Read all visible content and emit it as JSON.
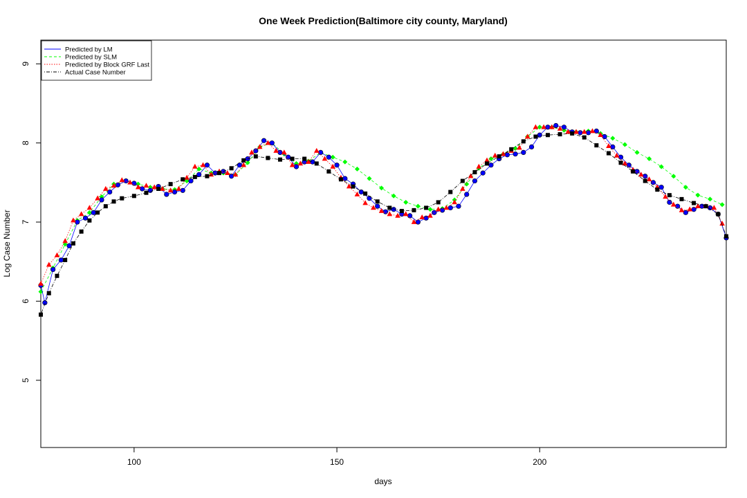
{
  "chart_data": {
    "type": "scatter",
    "title": "One Week Prediction(Baltimore city county, Maryland)",
    "xlabel": "days",
    "ylabel": "Log Case Number",
    "xlim": [
      77,
      246
    ],
    "ylim": [
      4.15,
      9.3
    ],
    "x_ticks": [
      100,
      150,
      200
    ],
    "y_ticks": [
      5,
      6,
      7,
      8,
      9
    ],
    "legend_position": "top-left",
    "legend": [
      {
        "label": "Predicted by LM",
        "color": "#0000ff",
        "line": "solid"
      },
      {
        "label": "Predicted by SLM",
        "color": "#00ff00",
        "line": "dashed"
      },
      {
        "label": "Predicted by Block GRF Last",
        "color": "#ff0000",
        "line": "dotted"
      },
      {
        "label": "Actual Case Number",
        "color": "#000000",
        "line": "dotdash"
      }
    ],
    "series": [
      {
        "name": "Actual Case Number",
        "color": "#000000",
        "marker": "square",
        "x": [
          77,
          79,
          81,
          83,
          85,
          87,
          89,
          91,
          93,
          95,
          97,
          100,
          103,
          106,
          109,
          112,
          115,
          118,
          121,
          124,
          127,
          130,
          133,
          136,
          139,
          142,
          145,
          148,
          151,
          154,
          157,
          160,
          163,
          166,
          169,
          172,
          175,
          178,
          181,
          184,
          187,
          190,
          193,
          196,
          199,
          202,
          205,
          208,
          211,
          214,
          217,
          220,
          223,
          226,
          229,
          232,
          235,
          238,
          241,
          244,
          246
        ],
        "y": [
          5.83,
          6.1,
          6.32,
          6.52,
          6.73,
          6.88,
          7.02,
          7.12,
          7.2,
          7.26,
          7.3,
          7.33,
          7.37,
          7.42,
          7.48,
          7.54,
          7.57,
          7.58,
          7.62,
          7.68,
          7.78,
          7.83,
          7.81,
          7.79,
          7.8,
          7.8,
          7.74,
          7.64,
          7.54,
          7.45,
          7.36,
          7.26,
          7.18,
          7.14,
          7.15,
          7.18,
          7.25,
          7.38,
          7.52,
          7.63,
          7.74,
          7.83,
          7.92,
          8.02,
          8.08,
          8.1,
          8.11,
          8.12,
          8.07,
          7.97,
          7.87,
          7.75,
          7.64,
          7.52,
          7.41,
          7.34,
          7.29,
          7.24,
          7.2,
          7.1,
          6.82
        ]
      },
      {
        "name": "Predicted by SLM",
        "color": "#00ff00",
        "marker": "diamond",
        "x": [
          77,
          80,
          83,
          86,
          89,
          92,
          95,
          98,
          101,
          104,
          107,
          110,
          113,
          116,
          119,
          122,
          125,
          128,
          131,
          134,
          137,
          140,
          143,
          146,
          149,
          152,
          155,
          158,
          161,
          164,
          167,
          170,
          173,
          176,
          179,
          182,
          185,
          188,
          191,
          194,
          197,
          200,
          203,
          206,
          209,
          212,
          215,
          218,
          221,
          224,
          227,
          230,
          233,
          236,
          239,
          242,
          245
        ],
        "y": [
          6.12,
          6.42,
          6.72,
          7.02,
          7.12,
          7.32,
          7.48,
          7.52,
          7.48,
          7.44,
          7.42,
          7.41,
          7.52,
          7.67,
          7.62,
          7.62,
          7.6,
          7.75,
          7.95,
          8.0,
          7.86,
          7.74,
          7.77,
          7.88,
          7.82,
          7.76,
          7.67,
          7.55,
          7.43,
          7.33,
          7.25,
          7.2,
          7.16,
          7.17,
          7.28,
          7.48,
          7.68,
          7.8,
          7.86,
          7.93,
          8.08,
          8.2,
          8.2,
          8.16,
          8.14,
          8.15,
          8.12,
          8.06,
          7.98,
          7.88,
          7.8,
          7.7,
          7.58,
          7.44,
          7.34,
          7.29,
          7.22
        ]
      },
      {
        "name": "Predicted by LM",
        "color": "#0000ff",
        "marker": "circle",
        "x": [
          77,
          78,
          80,
          82,
          84,
          86,
          88,
          90,
          92,
          94,
          96,
          98,
          100,
          102,
          104,
          106,
          108,
          110,
          112,
          114,
          116,
          118,
          120,
          122,
          124,
          126,
          128,
          130,
          132,
          134,
          136,
          138,
          140,
          142,
          144,
          146,
          148,
          150,
          152,
          154,
          156,
          158,
          160,
          162,
          164,
          166,
          168,
          170,
          172,
          174,
          176,
          178,
          180,
          182,
          184,
          186,
          188,
          190,
          192,
          194,
          196,
          198,
          200,
          202,
          204,
          206,
          208,
          210,
          212,
          214,
          216,
          218,
          220,
          222,
          224,
          226,
          228,
          230,
          232,
          234,
          236,
          238,
          240,
          242,
          244,
          246
        ],
        "y": [
          6.2,
          5.98,
          6.4,
          6.52,
          6.7,
          7.0,
          7.05,
          7.12,
          7.28,
          7.38,
          7.47,
          7.52,
          7.49,
          7.42,
          7.4,
          7.45,
          7.35,
          7.38,
          7.4,
          7.52,
          7.6,
          7.72,
          7.62,
          7.64,
          7.58,
          7.72,
          7.8,
          7.9,
          8.03,
          8.0,
          7.88,
          7.82,
          7.7,
          7.76,
          7.76,
          7.88,
          7.82,
          7.72,
          7.55,
          7.48,
          7.38,
          7.3,
          7.2,
          7.13,
          7.16,
          7.1,
          7.08,
          7.0,
          7.05,
          7.12,
          7.15,
          7.18,
          7.2,
          7.35,
          7.52,
          7.62,
          7.72,
          7.8,
          7.85,
          7.86,
          7.88,
          7.95,
          8.1,
          8.2,
          8.22,
          8.2,
          8.14,
          8.13,
          8.13,
          8.15,
          8.08,
          7.95,
          7.82,
          7.72,
          7.64,
          7.58,
          7.5,
          7.44,
          7.25,
          7.2,
          7.12,
          7.16,
          7.2,
          7.18,
          7.1,
          6.8
        ]
      },
      {
        "name": "Predicted by Block GRF Last",
        "color": "#ff0000",
        "marker": "triangle",
        "x": [
          77,
          79,
          81,
          83,
          85,
          87,
          89,
          91,
          93,
          95,
          97,
          99,
          101,
          103,
          105,
          107,
          109,
          111,
          113,
          115,
          117,
          119,
          121,
          123,
          125,
          127,
          129,
          131,
          133,
          135,
          137,
          139,
          141,
          143,
          145,
          147,
          149,
          151,
          153,
          155,
          157,
          159,
          161,
          163,
          165,
          167,
          169,
          171,
          173,
          175,
          177,
          179,
          181,
          183,
          185,
          187,
          189,
          191,
          193,
          195,
          197,
          199,
          201,
          203,
          205,
          207,
          209,
          211,
          213,
          215,
          217,
          219,
          221,
          223,
          225,
          227,
          229,
          231,
          233,
          235,
          237,
          239,
          241,
          243,
          245
        ],
        "y": [
          6.22,
          6.46,
          6.58,
          6.76,
          7.02,
          7.1,
          7.18,
          7.3,
          7.42,
          7.46,
          7.53,
          7.5,
          7.44,
          7.46,
          7.44,
          7.42,
          7.4,
          7.42,
          7.56,
          7.7,
          7.72,
          7.6,
          7.64,
          7.62,
          7.6,
          7.72,
          7.88,
          7.95,
          8.0,
          7.9,
          7.88,
          7.72,
          7.74,
          7.76,
          7.9,
          7.8,
          7.7,
          7.56,
          7.45,
          7.35,
          7.24,
          7.18,
          7.14,
          7.1,
          7.08,
          7.1,
          7.0,
          7.06,
          7.08,
          7.16,
          7.18,
          7.25,
          7.42,
          7.58,
          7.7,
          7.78,
          7.84,
          7.86,
          7.9,
          7.94,
          8.08,
          8.2,
          8.2,
          8.2,
          8.18,
          8.14,
          8.14,
          8.14,
          8.15,
          8.1,
          7.96,
          7.84,
          7.74,
          7.66,
          7.6,
          7.54,
          7.44,
          7.32,
          7.22,
          7.15,
          7.16,
          7.2,
          7.2,
          7.18,
          6.98
        ]
      }
    ]
  }
}
